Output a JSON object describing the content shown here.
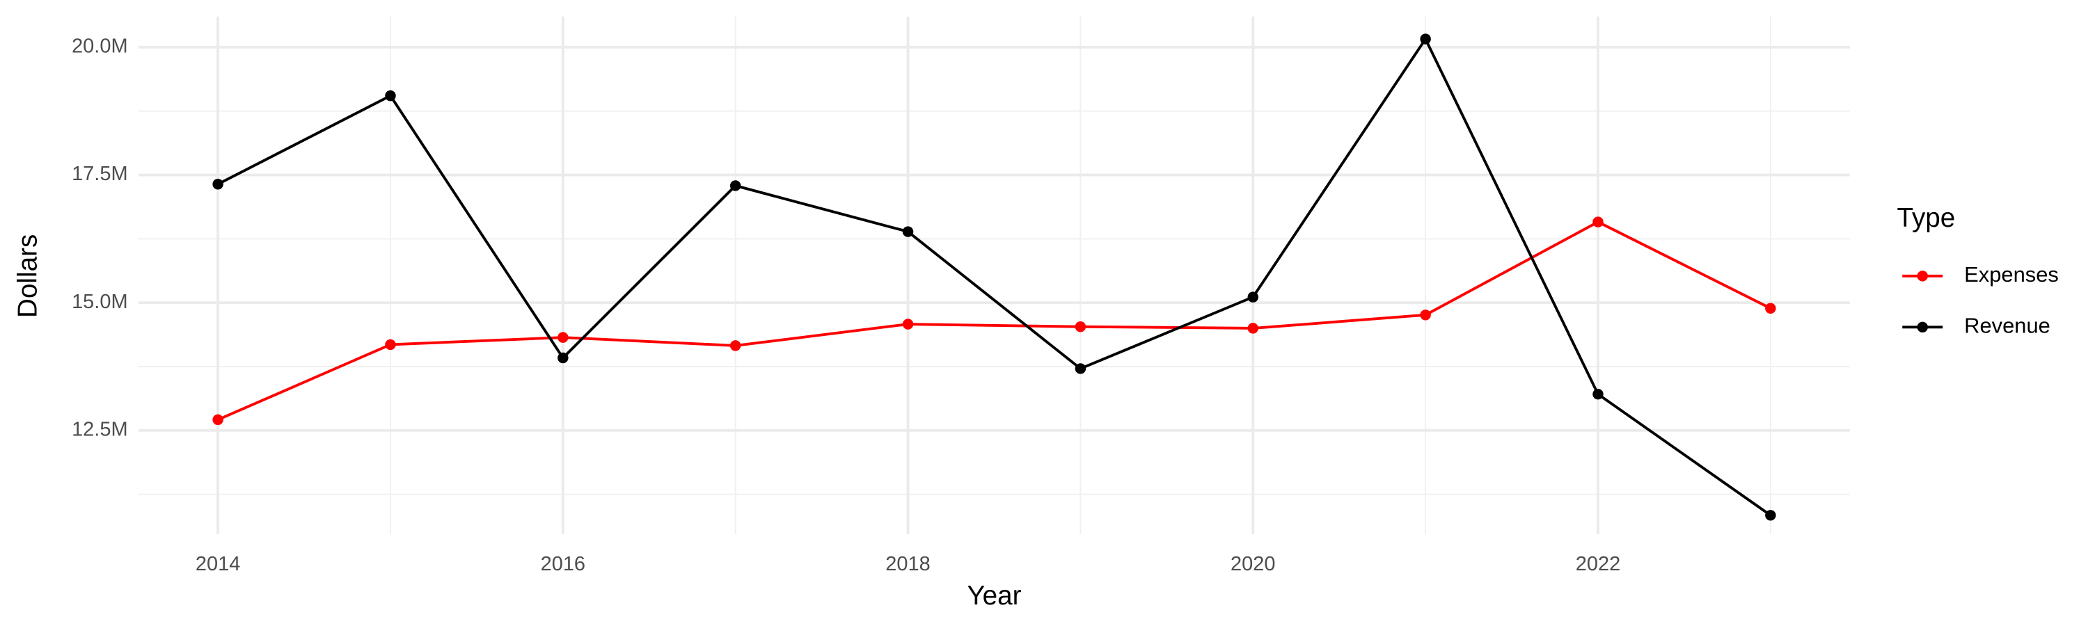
{
  "chart_data": {
    "type": "line",
    "x_label": "Year",
    "y_label": "Dollars",
    "legend_title": "Type",
    "legend": "right",
    "grid": true,
    "x": [
      2014,
      2015,
      2016,
      2017,
      2018,
      2019,
      2020,
      2021,
      2022,
      2023
    ],
    "series": [
      {
        "name": "Expenses",
        "color": "#ff0000",
        "values": [
          12710000,
          14180000,
          14320000,
          14160000,
          14580000,
          14530000,
          14500000,
          14760000,
          16580000,
          14890000
        ]
      },
      {
        "name": "Revenue",
        "color": "#000000",
        "values": [
          17320000,
          19050000,
          13920000,
          17290000,
          16390000,
          13710000,
          15110000,
          20160000,
          13210000,
          10840000
        ]
      }
    ],
    "xlim": [
      2013.54,
      2023.46
    ],
    "xticks": [
      2014,
      2016,
      2018,
      2020,
      2022
    ],
    "ylim": [
      10470000,
      20600000
    ],
    "yticks": [
      {
        "value": 12500000,
        "label": "12.5M"
      },
      {
        "value": 15000000,
        "label": "15.0M"
      },
      {
        "value": 17500000,
        "label": "17.5M"
      },
      {
        "value": 20000000,
        "label": "20.0M"
      }
    ]
  }
}
